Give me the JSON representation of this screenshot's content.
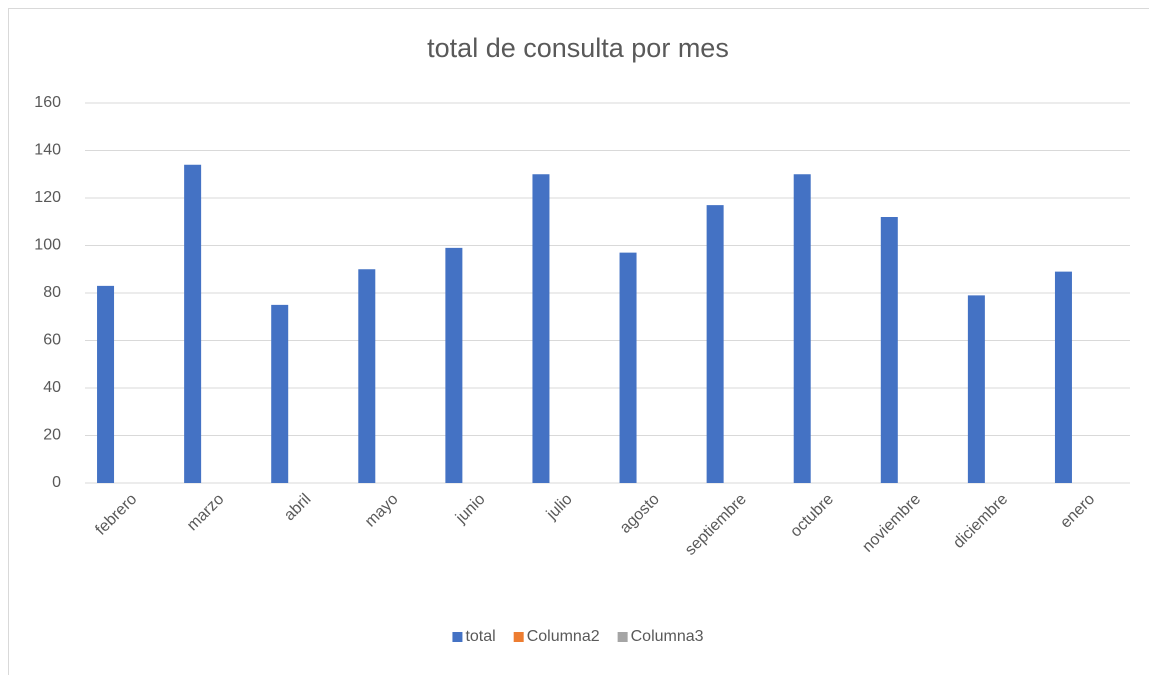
{
  "chart_data": {
    "type": "bar",
    "title": "total de consulta por mes",
    "categories": [
      "febrero",
      "marzo",
      "abril",
      "mayo",
      "junio",
      "julio",
      "agosto",
      "septiembre",
      "octubre",
      "noviembre",
      "diciembre",
      "enero"
    ],
    "series": [
      {
        "name": "total",
        "color": "#4472c4",
        "values": [
          83,
          134,
          75,
          90,
          99,
          130,
          97,
          117,
          130,
          112,
          79,
          89
        ]
      },
      {
        "name": "Columna2",
        "color": "#ed7d31",
        "values": [
          null,
          null,
          null,
          null,
          null,
          null,
          null,
          null,
          null,
          null,
          null,
          null
        ]
      },
      {
        "name": "Columna3",
        "color": "#a5a5a5",
        "values": [
          null,
          null,
          null,
          null,
          null,
          null,
          null,
          null,
          null,
          null,
          null,
          null
        ]
      }
    ],
    "ylim": [
      0,
      160
    ],
    "yticks": [
      0,
      20,
      40,
      60,
      80,
      100,
      120,
      140,
      160
    ],
    "grid": true,
    "legend": "bottom"
  }
}
